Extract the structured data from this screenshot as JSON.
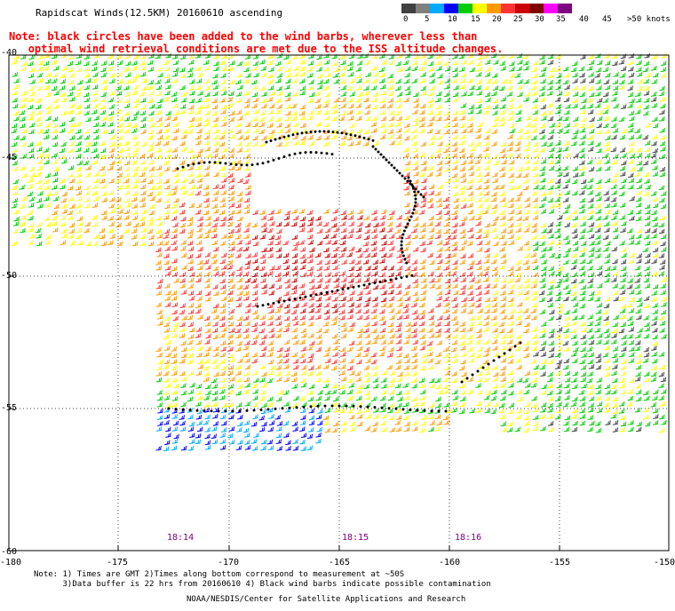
{
  "title": "Rapidscat Winds(12.5KM) 20160610 ascending",
  "note": {
    "line1": "Note: black circles have been added to the wind barbs, wherever less than",
    "line2": "optimal wind retrieval conditions are met due to the ISS altitude changes."
  },
  "legend": {
    "labels": [
      "0",
      "5",
      "10",
      "15",
      "20",
      "25",
      "30",
      "35",
      "40",
      "45",
      ">50 knots"
    ],
    "colors": [
      "#404040",
      "#808080",
      "#00aaff",
      "#0000ff",
      "#00cc00",
      "#ffff00",
      "#ff9900",
      "#ff3333",
      "#cc0000",
      "#800000",
      "#ff00ff",
      "#800080"
    ]
  },
  "axes": {
    "x_labels": [
      "-180",
      "-175",
      "-170",
      "-165",
      "-160",
      "-155",
      "-150"
    ],
    "y_labels": [
      "-40",
      "-45",
      "-50",
      "-55",
      "-60"
    ]
  },
  "times": [
    "18:14",
    "18:15",
    "18:16"
  ],
  "footnote": {
    "line1": "Note: 1) Times are GMT 2)Times along bottom correspond to measurement at ~50S",
    "line2": "      3)Data buffer is 22 hrs from 20160610 4) Black wind barbs indicate possible contamination"
  },
  "credit": "NOAA/NESDIS/Center for Satellite Applications and Research"
}
